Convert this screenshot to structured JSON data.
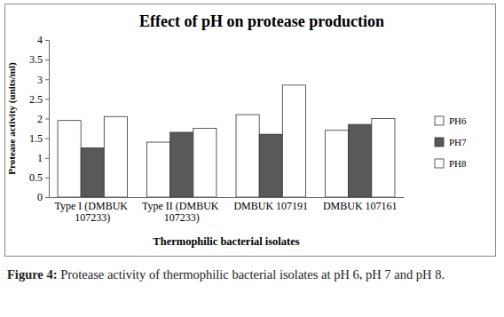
{
  "chart_data": {
    "type": "bar",
    "title": "Effect of pH on protease production",
    "caption": "Figure 4: Protease activity of thermophilic bacterial isolates at pH 6, pH 7 and pH 8.",
    "x_label": "Thermophilic bacterial isolates",
    "y_label": "Protease activity (units/ml)",
    "categories": [
      "Type I (DMBUK 107233)",
      "Type II (DMBUK 107233)",
      "DMBUK 107191",
      "DMBUK 107161"
    ],
    "series": [
      {
        "name": "PH6",
        "color": "#ffffff",
        "values": [
          1.95,
          1.4,
          2.1,
          1.7
        ]
      },
      {
        "name": "PH7",
        "color": "#595959",
        "values": [
          1.25,
          1.65,
          1.6,
          1.85
        ]
      },
      {
        "name": "PH8",
        "color": "#ffffff",
        "values": [
          2.05,
          1.75,
          2.85,
          2.0
        ]
      }
    ],
    "ylim": [
      0,
      4
    ],
    "yticks": [
      0,
      0.5,
      1,
      1.5,
      2,
      2.5,
      3,
      3.5,
      4
    ],
    "grid": false,
    "legend": "right"
  }
}
